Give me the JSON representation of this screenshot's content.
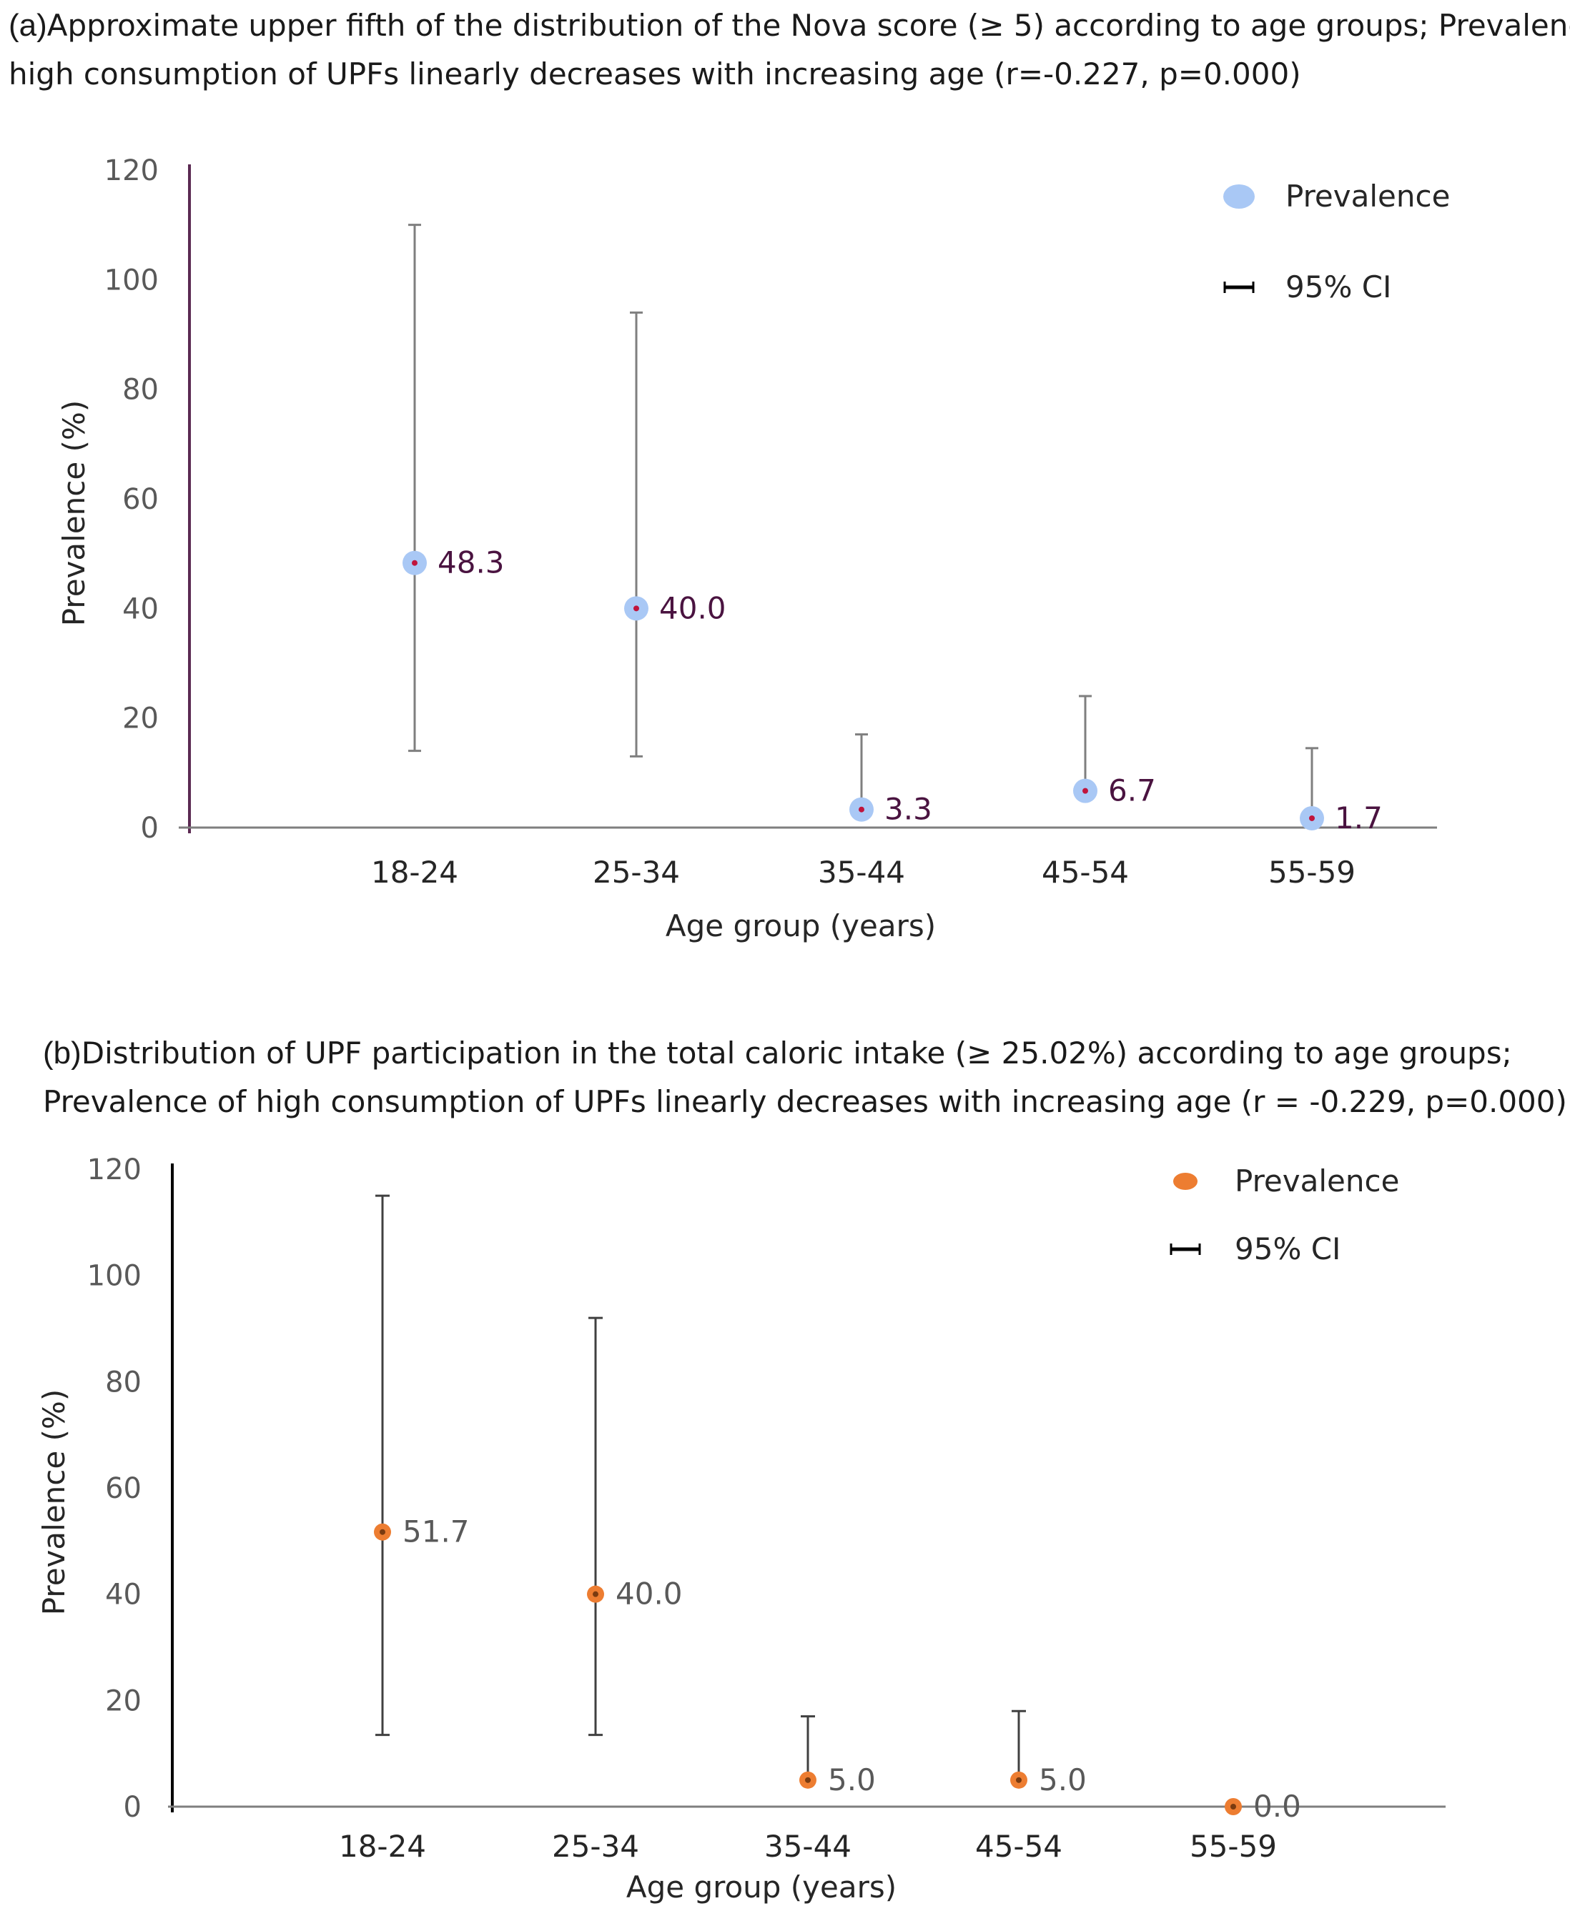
{
  "chart_data": [
    {
      "type": "scatter",
      "panel": "(a)",
      "title_line1": "Approximate upper fifth of the distribution of the Nova score (≥ 5) according to age groups; Prevalence of",
      "title_line2": "high consumption of UPFs linearly decreases with increasing age (r=-0.227, p=0.000)",
      "xlabel": "Age group (years)",
      "ylabel": "Prevalence (%)",
      "ylim": [
        0,
        120
      ],
      "yticks": [
        0,
        20,
        40,
        60,
        80,
        100,
        120
      ],
      "yticks_text": [
        "0",
        "20",
        "40",
        "60",
        "80",
        "100",
        "120"
      ],
      "categories": [
        "18-24",
        "25-34",
        "35-44",
        "45-54",
        "55-59"
      ],
      "values": [
        48.3,
        40.0,
        3.3,
        6.7,
        1.7
      ],
      "value_labels": [
        "48.3",
        "40.0",
        "3.3",
        "6.7",
        "1.7"
      ],
      "ci_low": [
        14,
        13,
        3.3,
        5.5,
        1.7
      ],
      "ci_high": [
        110,
        94,
        17,
        24,
        14.5
      ],
      "legend": {
        "marker_label": "Prevalence",
        "ci_label": "95% CI",
        "position": "top-right"
      },
      "colors": {
        "marker": "#a9c8f5",
        "center": "#c0143c",
        "axis": "#5b2a52",
        "errorbar": "#7f7f7f"
      }
    },
    {
      "type": "scatter",
      "panel": "(b)",
      "title_line1": "Distribution of UPF participation in the total caloric intake (≥ 25.02%) according to age groups;",
      "title_line2": "Prevalence of high consumption of UPFs linearly decreases with increasing age (r = -0.229, p=0.000)",
      "xlabel": "Age group (years)",
      "ylabel": "Prevalence (%)",
      "ylim": [
        0,
        120
      ],
      "yticks": [
        0,
        20,
        40,
        60,
        80,
        100,
        120
      ],
      "yticks_text": [
        "0",
        "20",
        "40",
        "60",
        "80",
        "100",
        "120"
      ],
      "categories": [
        "18-24",
        "25-34",
        "35-44",
        "45-54",
        "55-59"
      ],
      "values": [
        51.7,
        40.0,
        5.0,
        5.0,
        0.0
      ],
      "value_labels": [
        "51.7",
        "40.0",
        "5.0",
        "5.0",
        "0.0"
      ],
      "ci_low": [
        13.5,
        13.5,
        5.0,
        5.0,
        0.0
      ],
      "ci_high": [
        115,
        92,
        17,
        18,
        0.0
      ],
      "legend": {
        "marker_label": "Prevalence",
        "ci_label": "95% CI",
        "position": "top-right"
      },
      "colors": {
        "marker": "#ed7d31",
        "center": "#7a3b10",
        "axis": "#000000",
        "errorbar": "#404040"
      }
    }
  ]
}
